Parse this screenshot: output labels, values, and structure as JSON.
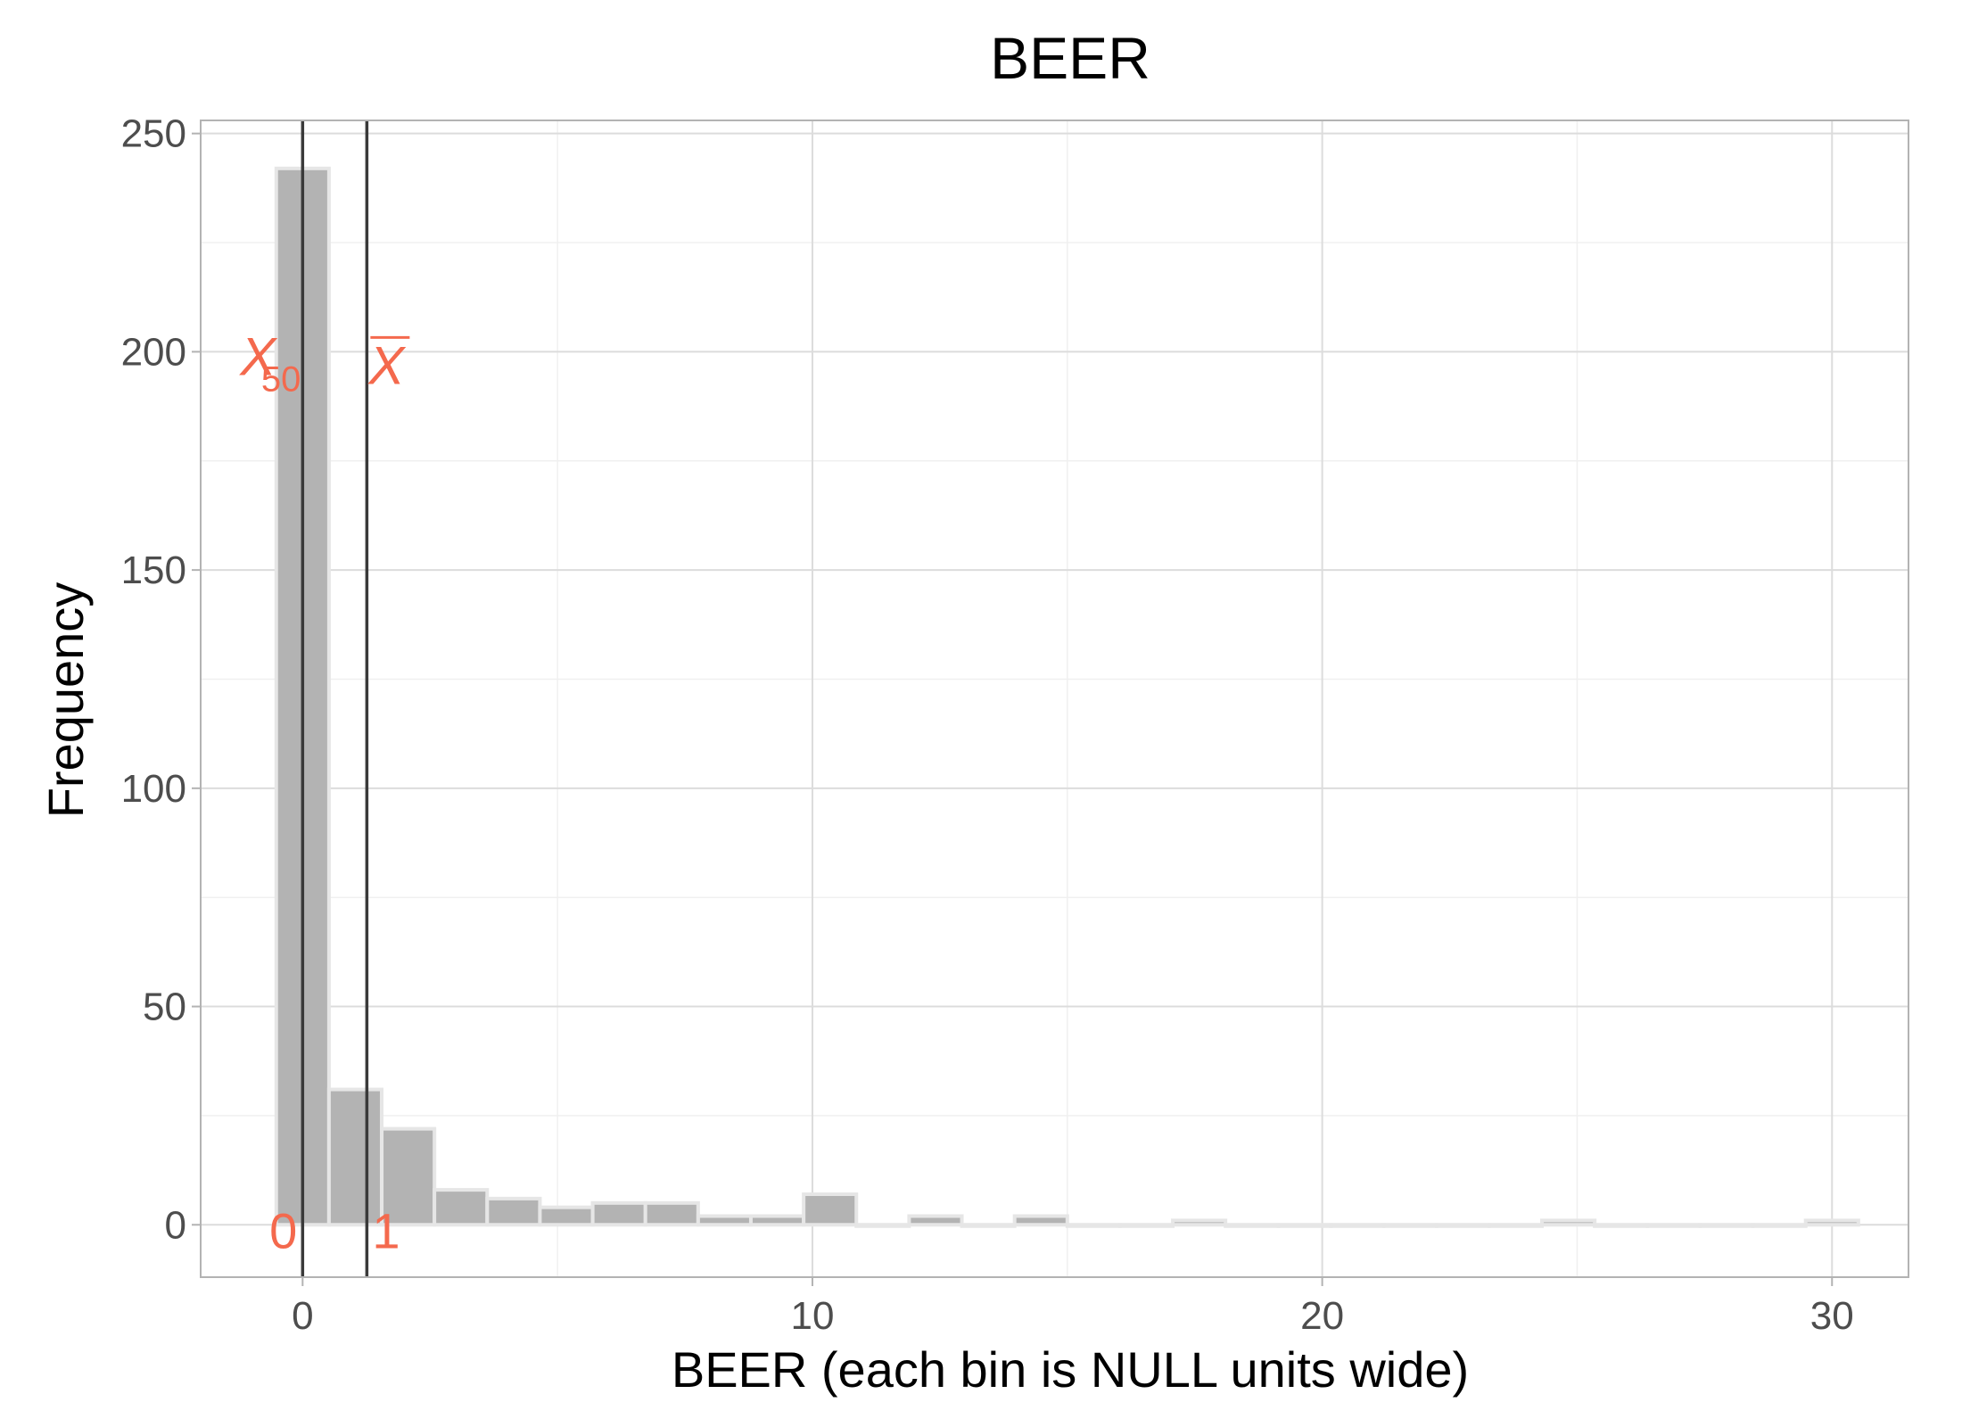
{
  "chart_data": {
    "type": "bar",
    "title": "BEER",
    "xlabel": "BEER (each bin is NULL units wide)",
    "ylabel": "Frequency",
    "xlim": [
      -2.0,
      31.5
    ],
    "ylim": [
      -12,
      253
    ],
    "x_ticks": [
      0,
      10,
      20,
      30
    ],
    "y_ticks": [
      0,
      50,
      100,
      150,
      200,
      250
    ],
    "grid": true,
    "bin_width": 1.034,
    "bin_centers": [
      0.0,
      1.034,
      2.069,
      3.103,
      4.138,
      5.172,
      6.207,
      7.241,
      8.276,
      9.31,
      10.345,
      11.379,
      12.414,
      13.448,
      14.483,
      15.517,
      16.552,
      17.586,
      18.621,
      19.655,
      20.69,
      21.724,
      22.759,
      23.793,
      24.828,
      25.862,
      26.897,
      27.931,
      28.966,
      30.0
    ],
    "values": [
      242,
      31,
      22,
      8,
      6,
      4,
      5,
      5,
      2,
      2,
      7,
      0,
      2,
      0,
      2,
      0,
      0,
      1,
      0,
      0,
      0,
      0,
      0,
      0,
      1,
      0,
      0,
      0,
      0,
      1
    ],
    "bar_color": "#b3b3b3",
    "bar_outline": "#e6e6e6",
    "reference_lines": [
      {
        "name": "median",
        "x": 0,
        "label": "X",
        "subscript": "50",
        "value_label": "0",
        "label_y": 200
      },
      {
        "name": "mean",
        "x": 1.26,
        "label": "X",
        "overline": true,
        "value_label": "1",
        "label_y": 200
      }
    ],
    "annotation_color": "#f4694d",
    "line_color": "#3a3a3a"
  }
}
